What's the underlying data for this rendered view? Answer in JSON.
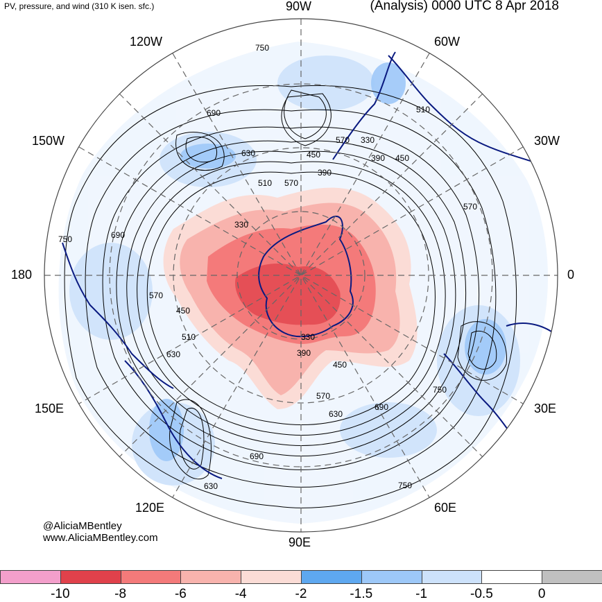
{
  "header": {
    "title_left": "PV, pressure, and wind (310 K isen. sfc.)",
    "title_right": "(Analysis) 0000 UTC 8 Apr 2018"
  },
  "longitude_labels": {
    "top": "90W",
    "top_left": "120W",
    "top_right": "60W",
    "upper_left": "150W",
    "upper_right": "30W",
    "left": "180",
    "right": "0",
    "lower_left": "150E",
    "lower_right": "30E",
    "bottom_left": "120E",
    "bottom_right": "60E",
    "bottom": "90E"
  },
  "contour_labels": [
    "750",
    "690",
    "630",
    "570",
    "510",
    "450",
    "390",
    "330",
    "750",
    "690",
    "630",
    "570",
    "510",
    "450",
    "390",
    "330",
    "450",
    "570",
    "630",
    "690",
    "750",
    "750",
    "690",
    "630",
    "570",
    "510",
    "450",
    "390",
    "330",
    "570"
  ],
  "credit": {
    "line1": "@AliciaMBentley",
    "line2": "www.AliciaMBentley.com"
  },
  "colorbar": {
    "colors": [
      "#f39fcb",
      "#e0414b",
      "#f47a7a",
      "#f8b3ad",
      "#fbdcd6",
      "#5ea8f0",
      "#9dc8f8",
      "#cde2fb",
      "#ffffff",
      "#c0c0c0"
    ],
    "ticks": [
      "-10",
      "-8",
      "-6",
      "-4",
      "-2",
      "-1.5",
      "-1",
      "-0.5",
      "0"
    ]
  }
}
